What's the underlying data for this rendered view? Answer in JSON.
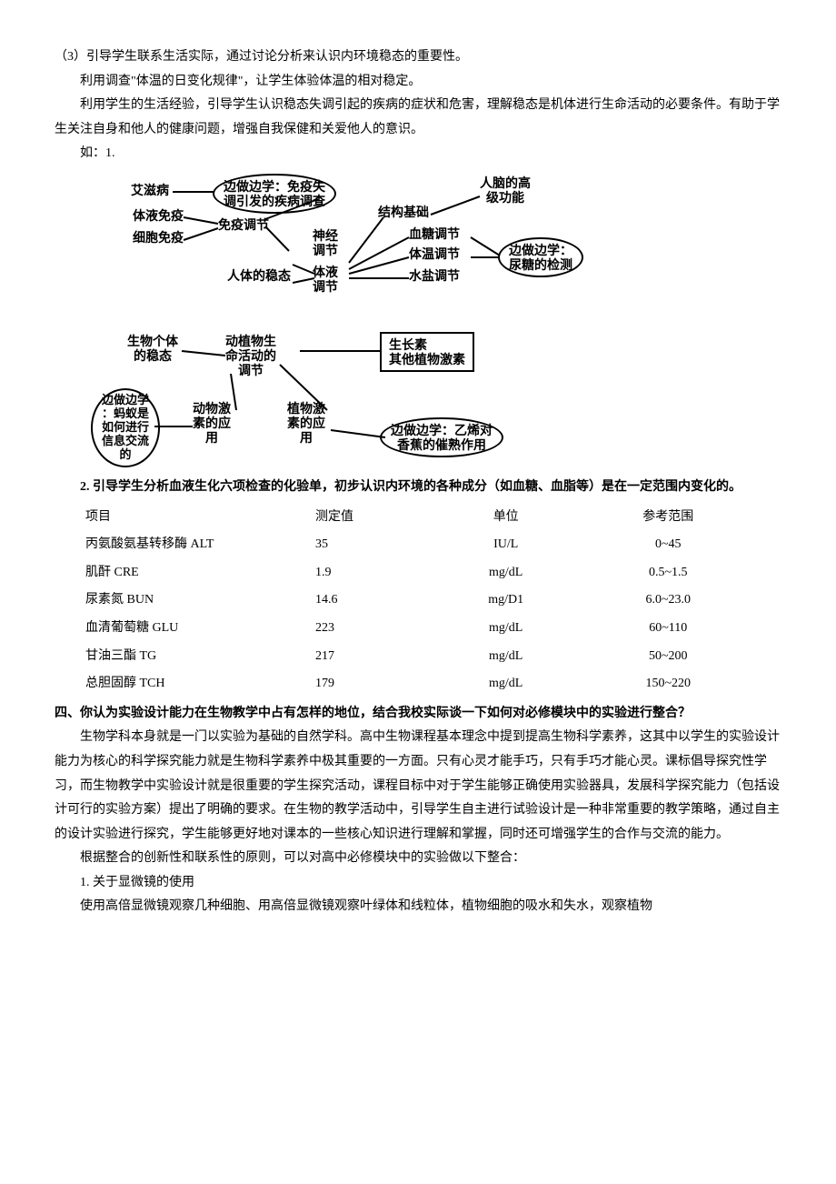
{
  "para1": "（3）引导学生联系生活实际，通过讨论分析来认识内环境稳态的重要性。",
  "para2": "利用调查\"体温的日变化规律\"，让学生体验体温的相对稳定。",
  "para3": "利用学生的生活经验，引导学生认识稳态失调引起的疾病的症状和危害，理解稳态是机体进行生命活动的必要条件。有助于学生关注自身和他人的健康问题，增强自我保健和关爱他人的意识。",
  "para4": "如：1.",
  "diagram": {
    "aids": "艾滋病",
    "humoral": "体液免疫",
    "cellular": "细胞免疫",
    "study_immune": "边做边学：免疫失\n调引发的疾病调查",
    "immune_reg": "免疫调节",
    "human_homeo": "人体的稳态",
    "neural": "神经\n调节",
    "fluid_reg": "体液\n调节",
    "struct_basis": "结构基础",
    "brain_func": "人脑的高\n级功能",
    "blood_sugar": "血糖调节",
    "body_temp": "体温调节",
    "water_salt": "水盐调节",
    "study_urine": "边做边学：\n尿糖的检测",
    "org_homeo": "生物个体\n的稳态",
    "animal_plant": "动植物生\n命活动的\n调节",
    "auxin_box": "生长素\n其他植物激素",
    "study_ant": "边做边学\n：蚂蚁是\n如何进行\n信息交流\n的",
    "animal_horm": "动物激\n素的应\n用",
    "plant_horm": "植物激\n素的应\n用",
    "study_banana": "边做边学：乙烯对\n香蕉的催熟作用"
  },
  "para5": "2. 引导学生分析血液生化六项检查的化验单，初步认识内环境的各种成分（如血糖、血脂等）是在一定范围内变化的。",
  "table": {
    "headers": [
      "项目",
      "测定值",
      "单位",
      "参考范围"
    ],
    "rows": [
      [
        "丙氨酸氨基转移酶 ALT",
        "35",
        "IU/L",
        "0~45"
      ],
      [
        "肌酐 CRE",
        "1.9",
        "mg/dL",
        "0.5~1.5"
      ],
      [
        "尿素氮 BUN",
        "14.6",
        "mg/D1",
        "6.0~23.0"
      ],
      [
        "血清葡萄糖 GLU",
        "223",
        "mg/dL",
        "60~110"
      ],
      [
        "甘油三酯 TG",
        "217",
        "mg/dL",
        "50~200"
      ],
      [
        "总胆固醇 TCH",
        "179",
        "mg/dL",
        "150~220"
      ]
    ]
  },
  "section4_title": "四、你认为实验设计能力在生物教学中占有怎样的地位，结合我校实际谈一下如何对必修模块中的实验进行整合？",
  "para6": "生物学科本身就是一门以实验为基础的自然学科。高中生物课程基本理念中提到提高生物科学素养，这其中以学生的实验设计能力为核心的科学探究能力就是生物科学素养中极其重要的一方面。只有心灵才能手巧，只有手巧才能心灵。课标倡导探究性学习，而生物教学中实验设计就是很重要的学生探究活动，课程目标中对于学生能够正确使用实验器具，发展科学探究能力（包括设计可行的实验方案）提出了明确的要求。在生物的教学活动中，引导学生自主进行试验设计是一种非常重要的教学策略，通过自主的设计实验进行探究，学生能够更好地对课本的一些核心知识进行理解和掌握，同时还可增强学生的合作与交流的能力。",
  "para7": "根据整合的创新性和联系性的原则，可以对高中必修模块中的实验做以下整合：",
  "para8": "1. 关于显微镜的使用",
  "para9": "使用高倍显微镜观察几种细胞、用高倍显微镜观察叶绿体和线粒体，植物细胞的吸水和失水，观察植物"
}
